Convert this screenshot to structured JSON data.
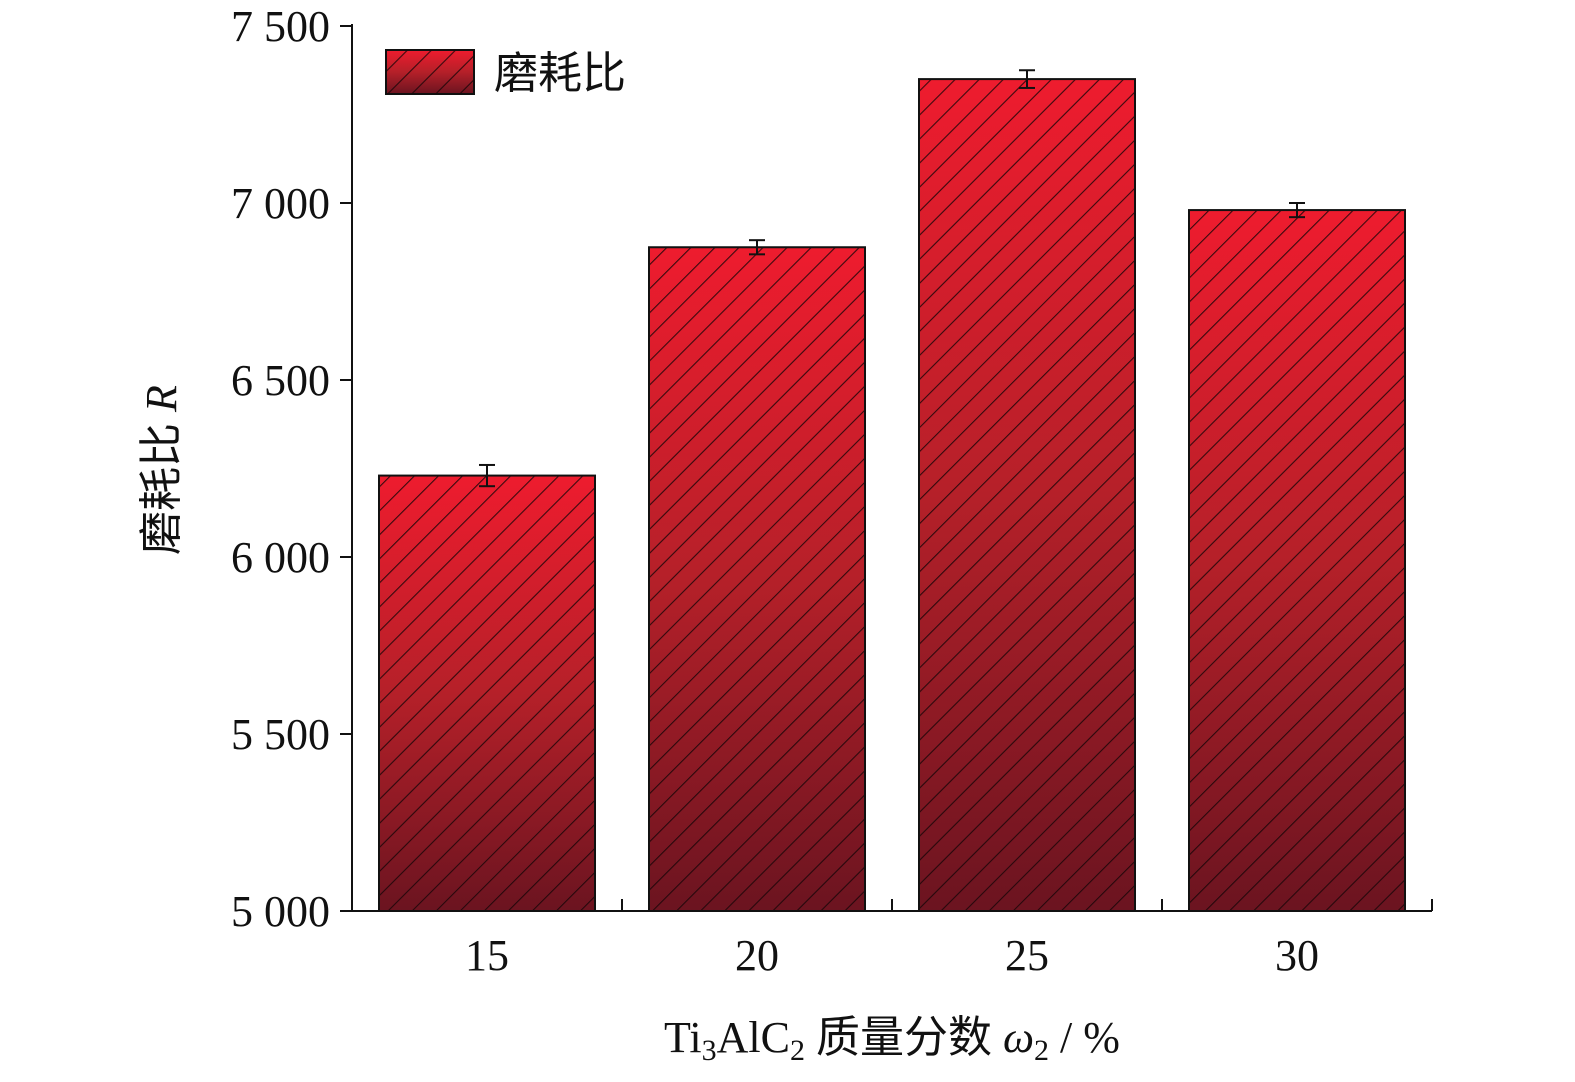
{
  "chart_data": {
    "type": "bar",
    "categories": [
      "15",
      "20",
      "25",
      "30"
    ],
    "series": [
      {
        "name": "磨耗比",
        "values": [
          6230,
          6875,
          7350,
          6980
        ],
        "errors": [
          30,
          20,
          25,
          20
        ],
        "color_top": "#ee1c2e",
        "color_bottom": "#6b1420",
        "hatch_color": "#1a0608"
      }
    ],
    "xlabel": {
      "prefix": "Ti",
      "sub1": "3",
      "mid": "AlC",
      "sub2": "2",
      "text": " 质量分数 ",
      "var": "ω",
      "var_sub": "2",
      "unit": " / %"
    },
    "ylabel": {
      "text": "磨耗比 ",
      "var": "R"
    },
    "ylim": [
      5000,
      7500
    ],
    "yticks": [
      5000,
      5500,
      6000,
      6500,
      7000,
      7500
    ],
    "ytick_labels": [
      "5 000",
      "5 500",
      "6 000",
      "6 500",
      "7 000",
      "7 500"
    ],
    "grid": false,
    "legend_position": "top-left"
  }
}
